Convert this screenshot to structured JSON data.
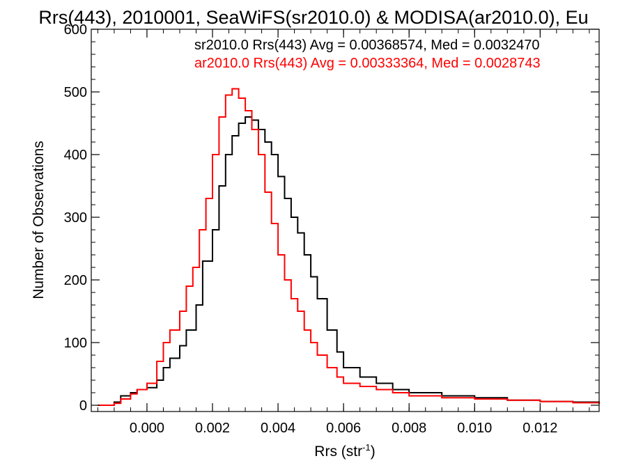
{
  "chart_data": {
    "type": "line",
    "title": "Rrs(443), 2010001, SeaWiFS(sr2010.0) & MODISA(ar2010.0), Eu",
    "xlabel": "Rrs (str",
    "xlabel_superscript": "-1",
    "xlabel_suffix": ")",
    "ylabel": "Number of Observations",
    "xlim": [
      -0.0017,
      0.0138
    ],
    "ylim": [
      -10,
      600
    ],
    "xticks": [
      0.0,
      0.002,
      0.004,
      0.006,
      0.008,
      0.01,
      0.012
    ],
    "xtick_labels": [
      "0.000",
      "0.002",
      "0.004",
      "0.006",
      "0.008",
      "0.010",
      "0.012"
    ],
    "yticks": [
      0,
      100,
      200,
      300,
      400,
      500,
      600
    ],
    "ytick_labels": [
      "0",
      "100",
      "200",
      "300",
      "400",
      "500",
      "600"
    ],
    "grid": false,
    "legend_position": "top-right",
    "step_style": "histogram",
    "series": [
      {
        "name": "sr2010.0",
        "legend": "sr2010.0 Rrs(443) Avg = 0.00368574, Med = 0.0032470",
        "color": "#000000",
        "x": [
          -0.0015,
          -0.001,
          -0.0008,
          -0.0005,
          -0.0003,
          0.0,
          0.0003,
          0.0005,
          0.0007,
          0.001,
          0.0012,
          0.0015,
          0.0017,
          0.002,
          0.0022,
          0.0024,
          0.0026,
          0.0028,
          0.003,
          0.0032,
          0.0034,
          0.0036,
          0.0038,
          0.004,
          0.0042,
          0.0044,
          0.0046,
          0.0048,
          0.005,
          0.0052,
          0.0055,
          0.0058,
          0.006,
          0.0065,
          0.007,
          0.0075,
          0.008,
          0.009,
          0.01,
          0.011,
          0.012,
          0.013,
          0.0138
        ],
        "values": [
          0,
          5,
          15,
          20,
          25,
          28,
          40,
          60,
          75,
          95,
          120,
          160,
          230,
          280,
          350,
          400,
          430,
          450,
          460,
          455,
          440,
          420,
          400,
          365,
          330,
          300,
          275,
          240,
          205,
          170,
          120,
          85,
          60,
          45,
          35,
          25,
          20,
          15,
          12,
          8,
          6,
          5,
          3
        ]
      },
      {
        "name": "ar2010.0",
        "legend": "ar2010.0 Rrs(443) Avg = 0.00333364, Med = 0.0028743",
        "color": "#ff0000",
        "x": [
          -0.0015,
          -0.001,
          -0.0008,
          -0.0005,
          -0.0003,
          0.0,
          0.0003,
          0.0005,
          0.0007,
          0.001,
          0.0012,
          0.0014,
          0.0016,
          0.0018,
          0.002,
          0.0022,
          0.0024,
          0.0026,
          0.0028,
          0.003,
          0.0032,
          0.0034,
          0.0036,
          0.0038,
          0.004,
          0.0042,
          0.0044,
          0.0046,
          0.0048,
          0.005,
          0.0052,
          0.0055,
          0.0058,
          0.006,
          0.0065,
          0.007,
          0.0075,
          0.008,
          0.009,
          0.01,
          0.011,
          0.012,
          0.013,
          0.0138
        ],
        "values": [
          0,
          3,
          10,
          18,
          25,
          35,
          70,
          100,
          120,
          150,
          190,
          220,
          280,
          330,
          400,
          460,
          495,
          505,
          490,
          470,
          440,
          400,
          340,
          290,
          240,
          200,
          170,
          150,
          120,
          100,
          80,
          60,
          45,
          35,
          30,
          25,
          20,
          15,
          12,
          10,
          8,
          6,
          4,
          2
        ]
      }
    ]
  }
}
